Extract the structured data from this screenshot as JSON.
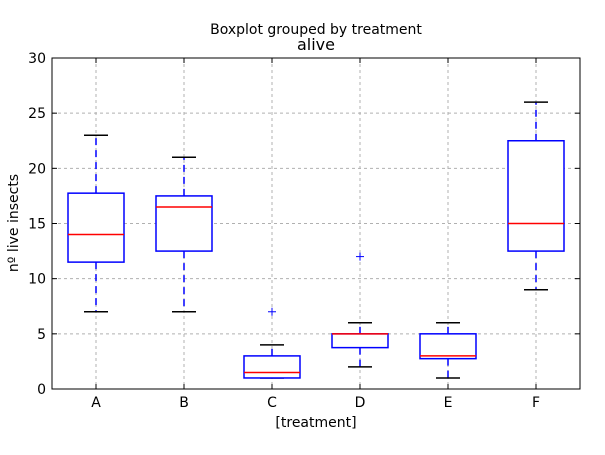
{
  "chart_data": {
    "type": "boxplot",
    "suptitle": "Boxplot grouped by treatment",
    "title": "alive",
    "xlabel": "[treatment]",
    "ylabel": "nº live insects",
    "ylim": [
      0,
      30
    ],
    "yticks": [
      0,
      5,
      10,
      15,
      20,
      25,
      30
    ],
    "grid": true,
    "categories": [
      "A",
      "B",
      "C",
      "D",
      "E",
      "F"
    ],
    "boxes": [
      {
        "category": "A",
        "whisker_low": 7,
        "q1": 11.5,
        "median": 14,
        "q3": 17.75,
        "whisker_high": 23,
        "outliers": []
      },
      {
        "category": "B",
        "whisker_low": 7,
        "q1": 12.5,
        "median": 16.5,
        "q3": 17.5,
        "whisker_high": 21,
        "outliers": []
      },
      {
        "category": "C",
        "whisker_low": 1,
        "q1": 1,
        "median": 1.5,
        "q3": 3,
        "whisker_high": 4,
        "outliers": [
          7
        ]
      },
      {
        "category": "D",
        "whisker_low": 2,
        "q1": 3.75,
        "median": 5,
        "q3": 5,
        "whisker_high": 6,
        "outliers": [
          12
        ]
      },
      {
        "category": "E",
        "whisker_low": 1,
        "q1": 2.75,
        "median": 3,
        "q3": 5,
        "whisker_high": 6,
        "outliers": []
      },
      {
        "category": "F",
        "whisker_low": 9,
        "q1": 12.5,
        "median": 15,
        "q3": 22.5,
        "whisker_high": 26,
        "outliers": []
      }
    ],
    "colors": {
      "box": "#0000ff",
      "median": "#ff0000",
      "whisker": "#0000ff",
      "cap": "#000000",
      "flier": "#0000ff",
      "grid": "#b0b0b0",
      "axes": "#000000"
    }
  }
}
